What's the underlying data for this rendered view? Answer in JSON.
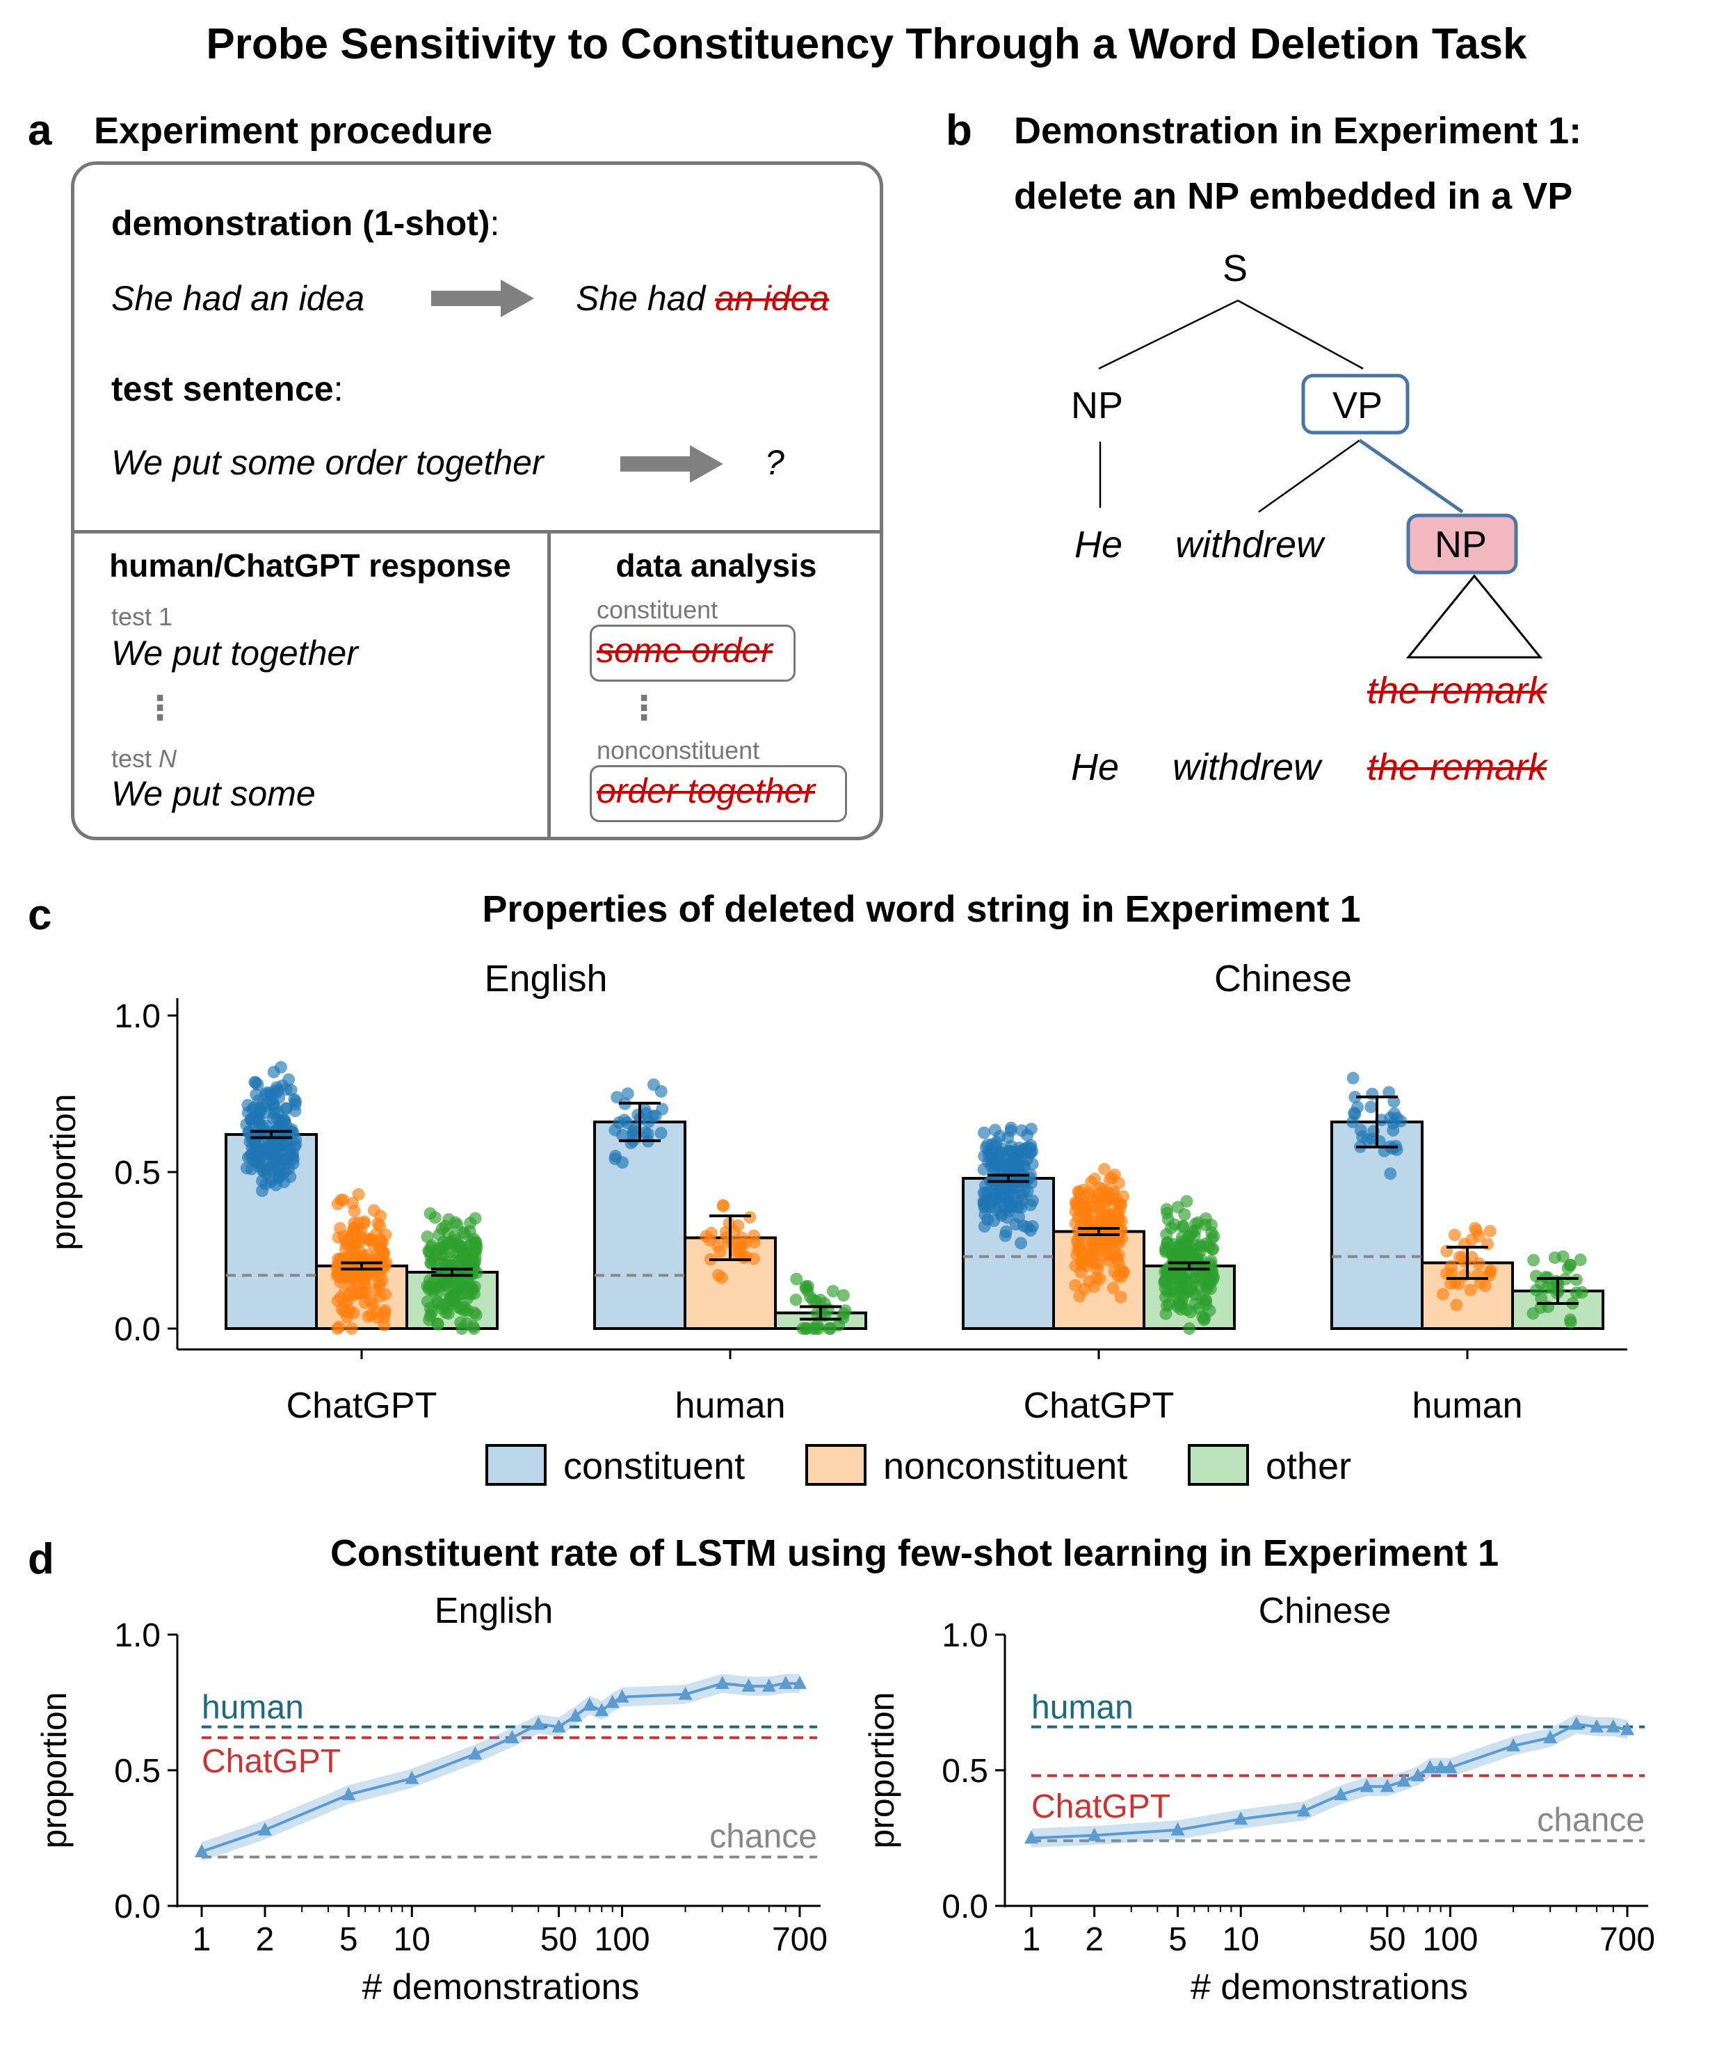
{
  "title": "Probe Sensitivity to Constituency Through a Word Deletion Task",
  "panel_a": {
    "letter": "a",
    "heading": "Experiment procedure",
    "demo_label_bold": "demonstration (1-shot)",
    "colon": ":",
    "demo_input": "She had an idea",
    "demo_output_kept": "She had",
    "demo_output_deleted": "an idea",
    "test_label_bold": "test sentence",
    "test_input": "We put some order together",
    "test_output": "?",
    "response_heading": "human/ChatGPT response",
    "analysis_heading": "data analysis",
    "test1_label": "test 1",
    "test1_response": "We put together",
    "testN_label_prefix": "test ",
    "testN_label_n": "N",
    "testN_response": "We put some",
    "vdots": "⋮",
    "constituent_label": "constituent",
    "constituent_deleted": "some order",
    "nonconstituent_label": "nonconstituent",
    "nonconstituent_deleted": "order together"
  },
  "panel_b": {
    "letter": "b",
    "heading_line1": "Demonstration in Experiment 1:",
    "heading_line2": "delete an NP embedded in a VP",
    "node_s": "S",
    "node_np": "NP",
    "node_vp": "VP",
    "node_np2": "NP",
    "word_he": "He",
    "word_withdrew": "withdrew",
    "deleted_phrase": "the remark",
    "result_he": "He",
    "result_withdrew": "withdrew",
    "result_deleted": "the remark",
    "colors": {
      "box_border": "#4a76a6",
      "np_fill": "#f2b8bf"
    }
  },
  "panel_c": {
    "letter": "c",
    "heading": "Properties of deleted word string in Experiment 1",
    "legend": [
      "constituent",
      "nonconstituent",
      "other"
    ],
    "colors": {
      "constituent_fill": "#bcd6ea",
      "constituent_dots": "#1f77b4",
      "nonconstituent_fill": "#fdd5ac",
      "nonconstituent_dots": "#ff7f0e",
      "other_fill": "#bde3bc",
      "other_dots": "#2ca02c"
    }
  },
  "panel_d": {
    "letter": "d",
    "heading": "Constituent rate of LSTM using few-shot learning in Experiment 1",
    "colors": {
      "human": "#1b6a80",
      "chatgpt": "#cc3333",
      "chance": "#888888",
      "lstm": "#5b9bd0"
    }
  },
  "chart_data": [
    {
      "type": "bar",
      "title": "English",
      "ylabel": "proportion",
      "ylim": [
        0,
        1.0
      ],
      "yticks": [
        "0.0",
        "0.5",
        "1.0"
      ],
      "categories": [
        "ChatGPT",
        "human"
      ],
      "series": [
        {
          "name": "constituent",
          "values": [
            0.62,
            0.66
          ],
          "error": [
            0.01,
            0.06
          ]
        },
        {
          "name": "nonconstituent",
          "values": [
            0.2,
            0.29
          ],
          "error": [
            0.01,
            0.07
          ]
        },
        {
          "name": "other",
          "values": [
            0.18,
            0.05
          ],
          "error": [
            0.01,
            0.02
          ]
        }
      ],
      "chance": [
        0.17,
        0.17
      ]
    },
    {
      "type": "bar",
      "title": "Chinese",
      "ylabel": "proportion",
      "ylim": [
        0,
        1.0
      ],
      "categories": [
        "ChatGPT",
        "human"
      ],
      "series": [
        {
          "name": "constituent",
          "values": [
            0.48,
            0.66
          ],
          "error": [
            0.01,
            0.08
          ]
        },
        {
          "name": "nonconstituent",
          "values": [
            0.31,
            0.21
          ],
          "error": [
            0.01,
            0.05
          ]
        },
        {
          "name": "other",
          "values": [
            0.2,
            0.12
          ],
          "error": [
            0.01,
            0.04
          ]
        }
      ],
      "chance": [
        0.23,
        0.23
      ]
    },
    {
      "type": "line",
      "title": "English",
      "xlabel": "# demonstrations",
      "ylabel": "proportion",
      "xscale": "log",
      "ylim": [
        0,
        1.0
      ],
      "yticks": [
        "0.0",
        "0.5",
        "1.0"
      ],
      "xticks": [
        "1",
        "2",
        "5",
        "10",
        "50",
        "100",
        "700"
      ],
      "x": [
        1,
        2,
        5,
        10,
        20,
        30,
        40,
        50,
        60,
        70,
        80,
        90,
        100,
        200,
        300,
        400,
        500,
        600,
        700
      ],
      "values": [
        0.2,
        0.28,
        0.41,
        0.47,
        0.56,
        0.62,
        0.67,
        0.66,
        0.7,
        0.74,
        0.72,
        0.75,
        0.77,
        0.78,
        0.82,
        0.81,
        0.81,
        0.82,
        0.82
      ],
      "references": [
        {
          "name": "human",
          "value": 0.66
        },
        {
          "name": "ChatGPT",
          "value": 0.62
        },
        {
          "name": "chance",
          "value": 0.18
        }
      ]
    },
    {
      "type": "line",
      "title": "Chinese",
      "xlabel": "# demonstrations",
      "ylabel": "proportion",
      "xscale": "log",
      "ylim": [
        0,
        1.0
      ],
      "yticks": [
        "0.0",
        "0.5",
        "1.0"
      ],
      "xticks": [
        "1",
        "2",
        "5",
        "10",
        "50",
        "100",
        "700"
      ],
      "x": [
        1,
        2,
        5,
        10,
        20,
        30,
        40,
        50,
        60,
        70,
        80,
        90,
        100,
        200,
        300,
        400,
        500,
        600,
        700
      ],
      "values": [
        0.25,
        0.26,
        0.28,
        0.32,
        0.35,
        0.41,
        0.44,
        0.44,
        0.46,
        0.48,
        0.51,
        0.51,
        0.51,
        0.59,
        0.62,
        0.67,
        0.66,
        0.66,
        0.65
      ],
      "references": [
        {
          "name": "human",
          "value": 0.66
        },
        {
          "name": "ChatGPT",
          "value": 0.48
        },
        {
          "name": "chance",
          "value": 0.24
        }
      ]
    }
  ]
}
